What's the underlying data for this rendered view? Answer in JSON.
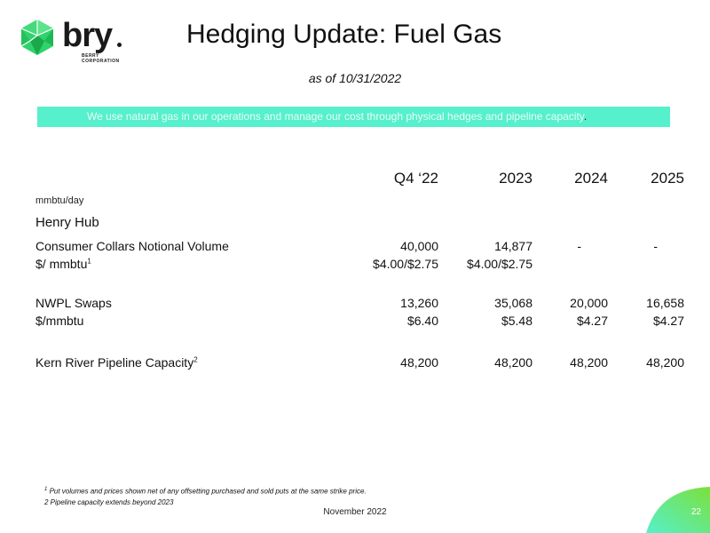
{
  "brand": {
    "logo_word": "bry",
    "logo_subtext_1": "BERRY",
    "logo_subtext_2": "CORPORATION",
    "colors": {
      "green": "#56f0cc",
      "lime": "#7be03c",
      "gem": "#2fd36b"
    }
  },
  "title": "Hedging Update: Fuel Gas",
  "as_of": "as of 10/31/2022",
  "banner": {
    "text": "We use natural gas in our operations and manage our cost through physical hedges and pipeline capacity",
    "end_mark": "."
  },
  "table": {
    "columns": [
      "Q4 ‘22",
      "2023",
      "2024",
      "2025"
    ],
    "unit_label": "mmbtu/day",
    "section_label": "Henry Hub",
    "rows": {
      "collars_volume": {
        "label": "Consumer Collars Notional Volume",
        "values": [
          "40,000",
          "14,877",
          "-",
          "-"
        ]
      },
      "collars_price": {
        "label": "$/ mmbtu",
        "sup": "1",
        "values": [
          "$4.00/$2.75",
          "$4.00/$2.75",
          "",
          ""
        ]
      },
      "nwpl_volume": {
        "label": "NWPL Swaps",
        "values": [
          "13,260",
          "35,068",
          "20,000",
          "16,658"
        ]
      },
      "nwpl_price": {
        "label": "$/mmbtu",
        "values": [
          "$6.40",
          "$5.48",
          "$4.27",
          "$4.27"
        ]
      },
      "kern": {
        "label": "Kern River Pipeline Capacity",
        "sup": "2",
        "values": [
          "48,200",
          "48,200",
          "48,200",
          "48,200"
        ]
      }
    }
  },
  "footnotes": {
    "note1_mark": "1",
    "note1": "Put volumes and prices shown net of any offsetting purchased and sold puts at the same strike price.",
    "note2": "2 Pipeline capacity extends beyond 2023"
  },
  "footer": "November 2022",
  "page_number": "22"
}
